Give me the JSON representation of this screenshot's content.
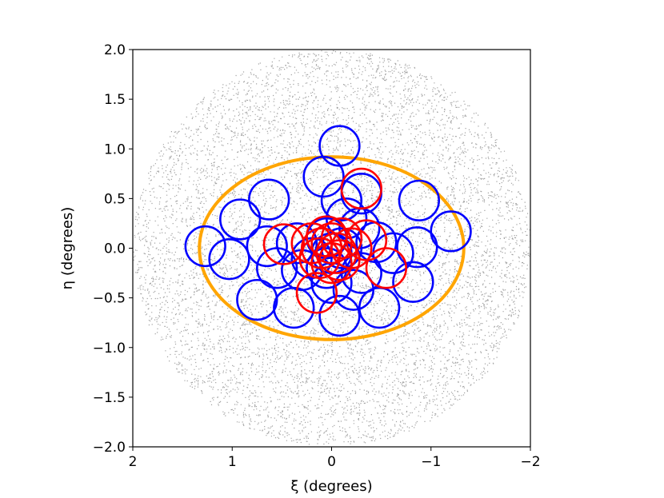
{
  "chart_data": {
    "type": "scatter",
    "title": "",
    "xlabel": "ξ (degrees)",
    "ylabel": "η (degrees)",
    "xlim": [
      2,
      -2
    ],
    "ylim": [
      -2,
      2
    ],
    "x_inverted": true,
    "xticks": [
      2,
      1,
      0,
      -1,
      -2
    ],
    "xtick_labels": [
      "2",
      "1",
      "0",
      "−1",
      "−2"
    ],
    "yticks": [
      -2.0,
      -1.5,
      -1.0,
      -0.5,
      0.0,
      0.5,
      1.0,
      1.5,
      2.0
    ],
    "ytick_labels": [
      "−2.0",
      "−1.5",
      "−1.0",
      "−0.5",
      "0.0",
      "0.5",
      "1.0",
      "1.5",
      "2.0"
    ],
    "grid": false,
    "legend": "none",
    "background_points": {
      "color": "#555555",
      "region": "disk",
      "center": [
        0,
        0
      ],
      "radius_deg": 2.0,
      "approx_count": 12000
    },
    "ellipse": {
      "color": "#ffa500",
      "center": [
        0.0,
        0.0
      ],
      "semi_major_deg": 1.33,
      "semi_minor_deg": 0.92
    },
    "circle_radius_deg": 0.2,
    "series": [
      {
        "color": "#0000ff",
        "circles": [
          [
            -0.08,
            1.03
          ],
          [
            0.08,
            0.72
          ],
          [
            -0.1,
            0.48
          ],
          [
            0.63,
            0.49
          ],
          [
            -0.3,
            0.55
          ],
          [
            -0.88,
            0.48
          ],
          [
            0.92,
            0.29
          ],
          [
            1.27,
            0.02
          ],
          [
            1.03,
            -0.11
          ],
          [
            0.65,
            0.02
          ],
          [
            0.55,
            -0.2
          ],
          [
            0.35,
            0.05
          ],
          [
            0.2,
            -0.1
          ],
          [
            -1.2,
            0.17
          ],
          [
            -0.86,
            0.01
          ],
          [
            -0.82,
            -0.34
          ],
          [
            -0.62,
            -0.05
          ],
          [
            -0.45,
            0.06
          ],
          [
            -0.28,
            0.2
          ],
          [
            -0.15,
            0.3
          ],
          [
            -0.3,
            -0.25
          ],
          [
            0.05,
            0.1
          ],
          [
            0.0,
            -0.05
          ],
          [
            0.05,
            -0.2
          ],
          [
            0.0,
            -0.35
          ],
          [
            0.75,
            -0.52
          ],
          [
            0.38,
            -0.6
          ],
          [
            -0.08,
            -0.68
          ],
          [
            -0.48,
            -0.6
          ],
          [
            -0.22,
            -0.42
          ],
          [
            0.3,
            -0.22
          ],
          [
            -0.1,
            0.0
          ]
        ]
      },
      {
        "color": "#ff0000",
        "circles": [
          [
            -0.3,
            0.6
          ],
          [
            0.48,
            0.04
          ],
          [
            0.15,
            -0.45
          ],
          [
            -0.55,
            -0.2
          ],
          [
            -0.35,
            0.08
          ],
          [
            0.05,
            0.12
          ],
          [
            0.0,
            0.05
          ],
          [
            -0.05,
            -0.05
          ],
          [
            0.1,
            0.0
          ],
          [
            -0.1,
            0.1
          ],
          [
            0.0,
            -0.15
          ],
          [
            0.12,
            -0.1
          ],
          [
            -0.08,
            -0.12
          ],
          [
            0.2,
            0.05
          ],
          [
            -0.2,
            0.0
          ]
        ]
      }
    ]
  }
}
